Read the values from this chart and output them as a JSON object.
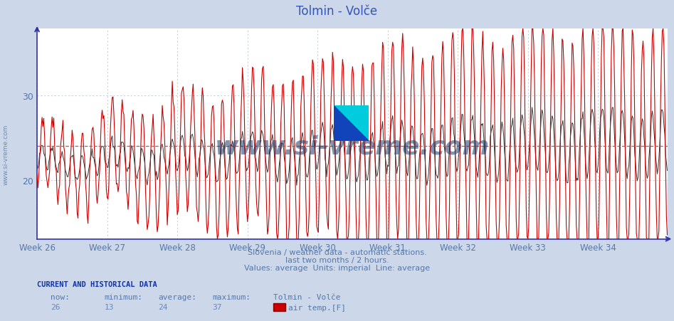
{
  "title": "Tolmin - Volče",
  "fig_bg_color": "#ccd8ea",
  "plot_bg_color": "#ffffff",
  "grid_color": "#c8d0dc",
  "grid_dot_color": "#c0c8d8",
  "line_color_red": "#cc0000",
  "line_color_dark": "#333333",
  "avg_line_color": "#dd4444",
  "axis_color": "#3333aa",
  "x_label_color": "#5577aa",
  "y_label_color": "#5577aa",
  "title_color": "#3355bb",
  "week_labels": [
    "Week 26",
    "Week 27",
    "Week 28",
    "Week 29",
    "Week 30",
    "Week 31",
    "Week 32",
    "Week 33",
    "Week 34"
  ],
  "ylim_min": 13,
  "ylim_max": 38,
  "yticks": [
    20,
    30
  ],
  "average_value": 24,
  "now": 26,
  "minimum": 13,
  "average": 24,
  "maximum": 37,
  "subtitle1": "Slovenia / weather data - automatic stations.",
  "subtitle2": "last two months / 2 hours.",
  "subtitle3": "Values: average  Units: imperial  Line: average",
  "footer_label": "CURRENT AND HISTORICAL DATA",
  "col_now": "now:",
  "col_min": "minimum:",
  "col_avg": "average:",
  "col_max": "maximum:",
  "station_name": "Tolmin - Volče",
  "series_label": "air temp.[F]",
  "watermark_text": "www.si-vreme.com",
  "watermark_color": "#1a3a6a",
  "sidebar_text": "www.si-vreme.com"
}
